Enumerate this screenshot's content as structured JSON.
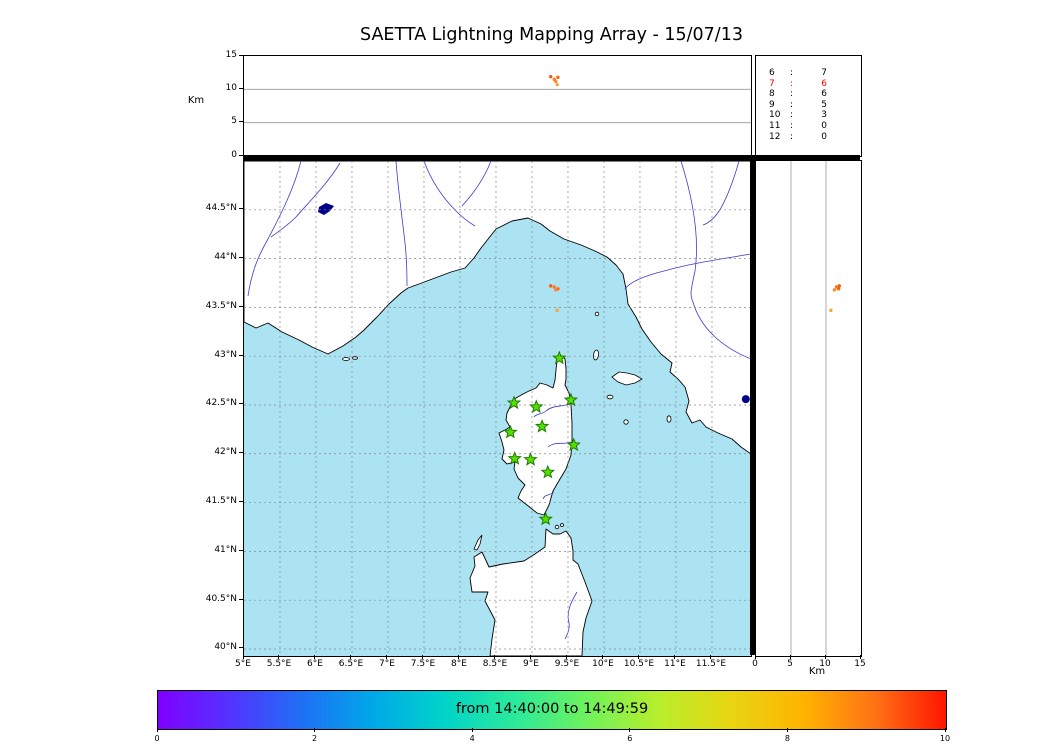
{
  "title": "SAETTA Lightning Mapping Array - 15/07/13",
  "station_count_table": {
    "rows": [
      {
        "stations": "6",
        "sep": ":",
        "count": "7",
        "highlight": false
      },
      {
        "stations": "7",
        "sep": ":",
        "count": "6",
        "highlight": true
      },
      {
        "stations": "8",
        "sep": ":",
        "count": "6",
        "highlight": false
      },
      {
        "stations": "9",
        "sep": ":",
        "count": "5",
        "highlight": false
      },
      {
        "stations": "10",
        "sep": ":",
        "count": "3",
        "highlight": false
      },
      {
        "stations": "11",
        "sep": ":",
        "count": "0",
        "highlight": false
      },
      {
        "stations": "12",
        "sep": ":",
        "count": "0",
        "highlight": false
      }
    ],
    "highlight_color": "#ff0000",
    "text_color": "#000000"
  },
  "colorbar": {
    "label": "from 14:40:00 to 14:49:59",
    "tick_values": [
      0,
      2,
      4,
      6,
      8,
      10
    ],
    "range": [
      0,
      10
    ],
    "gradient": [
      "#8000ff",
      "#5333ff",
      "#1f6ff5",
      "#00a8e8",
      "#00d4c8",
      "#2dea9a",
      "#6ff25c",
      "#b8ee2c",
      "#e8d512",
      "#ffb400",
      "#ff7315",
      "#ff1500"
    ]
  },
  "chart_data": {
    "type": "scatter",
    "title": "SAETTA Lightning Mapping Array - 15/07/13",
    "time_window": {
      "from": "14:40:00",
      "to": "14:49:59"
    },
    "map": {
      "sea_color": "#abe3f2",
      "lon_range": [
        5.0,
        12.042
      ],
      "lat_range": [
        39.928,
        45.0
      ],
      "grid": "dashed",
      "lon_ticks": [
        {
          "v": 5.0,
          "label": "5°E"
        },
        {
          "v": 5.5,
          "label": "5.5°E"
        },
        {
          "v": 6.0,
          "label": "6°E"
        },
        {
          "v": 6.5,
          "label": "6.5°E"
        },
        {
          "v": 7.0,
          "label": "7°E"
        },
        {
          "v": 7.5,
          "label": "7.5°E"
        },
        {
          "v": 8.0,
          "label": "8°E"
        },
        {
          "v": 8.5,
          "label": "8.5°E"
        },
        {
          "v": 9.0,
          "label": "9°E"
        },
        {
          "v": 9.5,
          "label": "9.5°E"
        },
        {
          "v": 10.0,
          "label": "10°E"
        },
        {
          "v": 10.5,
          "label": "10.5°E"
        },
        {
          "v": 11.0,
          "label": "11°E"
        },
        {
          "v": 11.5,
          "label": "11.5°E"
        }
      ],
      "lat_ticks": [
        {
          "v": 40.0,
          "label": "40°N"
        },
        {
          "v": 40.5,
          "label": "40.5°N"
        },
        {
          "v": 41.0,
          "label": "41°N"
        },
        {
          "v": 41.5,
          "label": "41.5°N"
        },
        {
          "v": 42.0,
          "label": "42°N"
        },
        {
          "v": 42.5,
          "label": "42.5°N"
        },
        {
          "v": 43.0,
          "label": "43°N"
        },
        {
          "v": 43.5,
          "label": "43.5°N"
        },
        {
          "v": 44.0,
          "label": "44°N"
        },
        {
          "v": 44.5,
          "label": "44.5°N"
        }
      ]
    },
    "altitude_axis": {
      "label": "Km",
      "range": [
        0,
        15
      ],
      "ticks": [
        {
          "v": 0,
          "label": "0"
        },
        {
          "v": 5,
          "label": "5"
        },
        {
          "v": 10,
          "label": "10"
        },
        {
          "v": 15,
          "label": "15"
        }
      ],
      "gridlines": [
        5,
        10
      ]
    },
    "station_marker": {
      "shape": "star",
      "fill": "#55e000",
      "stroke": "#1e7a00"
    },
    "stations": [
      {
        "lon": 9.38,
        "lat": 42.98
      },
      {
        "lon": 8.75,
        "lat": 42.52
      },
      {
        "lon": 9.06,
        "lat": 42.48
      },
      {
        "lon": 9.54,
        "lat": 42.55
      },
      {
        "lon": 8.7,
        "lat": 42.22
      },
      {
        "lon": 9.14,
        "lat": 42.28
      },
      {
        "lon": 9.58,
        "lat": 42.09
      },
      {
        "lon": 8.76,
        "lat": 41.95
      },
      {
        "lon": 8.98,
        "lat": 41.94
      },
      {
        "lon": 9.22,
        "lat": 41.81
      },
      {
        "lon": 9.19,
        "lat": 41.33
      }
    ],
    "sources": [
      {
        "lon": 9.26,
        "lat": 43.72,
        "alt_km": 11.9,
        "color": "#ff5500"
      },
      {
        "lon": 9.31,
        "lat": 43.71,
        "alt_km": 11.5,
        "color": "#ff7722"
      },
      {
        "lon": 9.36,
        "lat": 43.69,
        "alt_km": 11.8,
        "color": "#ff6600"
      },
      {
        "lon": 9.33,
        "lat": 43.68,
        "alt_km": 11.2,
        "color": "#ff8833"
      },
      {
        "lon": 9.35,
        "lat": 43.47,
        "alt_km": 10.7,
        "color": "#ffa040"
      }
    ],
    "extra_markers": [
      {
        "lon": 11.97,
        "lat": 42.56,
        "color": "#00008b",
        "r": 4
      }
    ]
  }
}
